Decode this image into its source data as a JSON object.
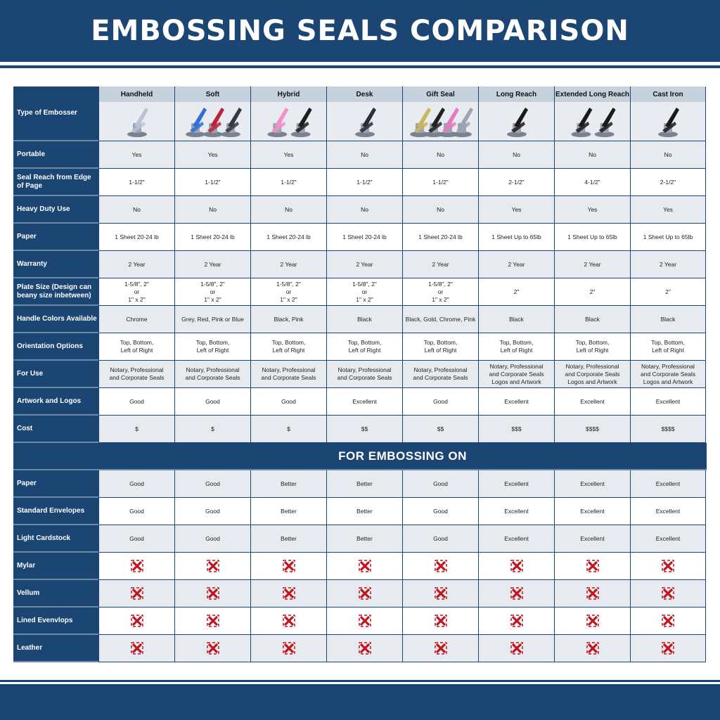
{
  "title": "EMBOSSING SEALS COMPARISON",
  "type_label": "Type of Embosser",
  "products": [
    {
      "name": "Handheld",
      "handle_colors": [
        "#b9c3d3"
      ]
    },
    {
      "name": "Soft",
      "handle_colors": [
        "#2f6fd6",
        "#b8263a",
        "#333944"
      ]
    },
    {
      "name": "Hybrid",
      "handle_colors": [
        "#f28fc8",
        "#1e1e22"
      ]
    },
    {
      "name": "Desk",
      "handle_colors": [
        "#2a2d33"
      ]
    },
    {
      "name": "Gift Seal",
      "handle_colors": [
        "#c8b560",
        "#222",
        "#e77ac0",
        "#9aa4b3"
      ]
    },
    {
      "name": "Long Reach",
      "handle_colors": [
        "#1a1a1a"
      ]
    },
    {
      "name": "Extended Long Reach",
      "handle_colors": [
        "#1a1a1a",
        "#1a1a1a"
      ]
    },
    {
      "name": "Cast Iron",
      "handle_colors": [
        "#1a1a1a"
      ]
    }
  ],
  "rows": [
    {
      "label": "Portable",
      "values": [
        "Yes",
        "Yes",
        "Yes",
        "No",
        "No",
        "No",
        "No",
        "No"
      ]
    },
    {
      "label": "Seal Reach from Edge of Page",
      "values": [
        "1-1/2\"",
        "1-1/2\"",
        "1-1/2\"",
        "1-1/2\"",
        "1-1/2\"",
        "2-1/2\"",
        "4-1/2\"",
        "2-1/2\""
      ]
    },
    {
      "label": "Heavy Duty Use",
      "values": [
        "No",
        "No",
        "No",
        "No",
        "No",
        "Yes",
        "Yes",
        "Yes"
      ]
    },
    {
      "label": "Paper",
      "values": [
        "1 Sheet 20-24 lb",
        "1 Sheet 20-24 lb",
        "1 Sheet 20-24 lb",
        "1 Sheet 20-24 lb",
        "1 Sheet 20-24 lb",
        "1 Sheet Up to 65lb",
        "1 Sheet Up to 65lb",
        "1 Sheet Up to 65lb"
      ]
    },
    {
      "label": "Warranty",
      "values": [
        "2 Year",
        "2 Year",
        "2 Year",
        "2 Year",
        "2 Year",
        "2 Year",
        "2 Year",
        "2 Year"
      ]
    },
    {
      "label": "Plate Size (Design can beany size inbetween)",
      "values": [
        "1-5/8\", 2\"\nor\n1\" x 2\"",
        "1-5/8\", 2\"\nor\n1\" x 2\"",
        "1-5/8\", 2\"\nor\n1\" x 2\"",
        "1-5/8\", 2\"\nor\n1\" x 2\"",
        "1-5/8\", 2\"\nor\n1\" x 2\"",
        "2\"",
        "2\"",
        "2\""
      ]
    },
    {
      "label": "Handle Colors Available",
      "values": [
        "Chrome",
        "Grey, Red, Pink or Blue",
        "Black, Pink",
        "Black",
        "Black, Gold, Chrome, Pink",
        "Black",
        "Black",
        "Black"
      ]
    },
    {
      "label": "Orientation Options",
      "values": [
        "Top, Bottom,\nLeft of Right",
        "Top, Bottom,\nLeft of Right",
        "Top, Bottom,\nLeft of Right",
        "Top, Bottom,\nLeft of Right",
        "Top, Bottom,\nLeft of Right",
        "Top, Bottom,\nLeft of Right",
        "Top, Bottom,\nLeft of Right",
        "Top, Bottom,\nLeft of Right"
      ]
    },
    {
      "label": "For Use",
      "values": [
        "Notary, Professional\nand Corporate Seals",
        "Notary, Professional\nand Corporate Seals",
        "Notary, Professional\nand Corporate Seals",
        "Notary, Professional\nand Corporate Seals",
        "Notary, Professional\nand Corporate Seals",
        "Notary, Professional\nand Corporate Seals\nLogos and Artwork",
        "Notary, Professional\nand Corporate Seals\nLogos and Artwork",
        "Notary, Professional\nand Corporate Seals\nLogos and Artwork"
      ]
    },
    {
      "label": "Artwork and Logos",
      "values": [
        "Good",
        "Good",
        "Good",
        "Excellent",
        "Good",
        "Excellent",
        "Excellent",
        "Excellent"
      ]
    },
    {
      "label": "Cost",
      "values": [
        "$",
        "$",
        "$",
        "$$",
        "$$",
        "$$$",
        "$$$$",
        "$$$$"
      ]
    }
  ],
  "section_title": "FOR EMBOSSING ON",
  "embossing_rows": [
    {
      "label": "Paper",
      "values": [
        "Good",
        "Good",
        "Better",
        "Better",
        "Good",
        "Excellent",
        "Excellent",
        "Excellent"
      ]
    },
    {
      "label": "Standard Envelopes",
      "values": [
        "Good",
        "Good",
        "Better",
        "Better",
        "Good",
        "Excellent",
        "Excellent",
        "Excellent"
      ]
    },
    {
      "label": "Light Cardstock",
      "values": [
        "Good",
        "Good",
        "Better",
        "Better",
        "Good",
        "Excellent",
        "Excellent",
        "Excellent"
      ]
    },
    {
      "label": "Mylar",
      "values": [
        "x",
        "x",
        "x",
        "x",
        "x",
        "x",
        "x",
        "x"
      ]
    },
    {
      "label": "Vellum",
      "values": [
        "x",
        "x",
        "x",
        "x",
        "x",
        "x",
        "x",
        "x"
      ]
    },
    {
      "label": "Lined Evenvlops",
      "values": [
        "x",
        "x",
        "x",
        "x",
        "x",
        "x",
        "x",
        "x"
      ]
    },
    {
      "label": "Leather",
      "values": [
        "x",
        "x",
        "x",
        "x",
        "x",
        "x",
        "x",
        "x"
      ]
    }
  ],
  "colors": {
    "navy": "#1b4674",
    "x_mark": "#c0141e"
  }
}
